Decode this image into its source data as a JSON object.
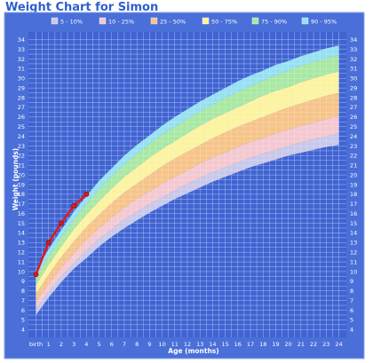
{
  "chart_data": {
    "type": "line",
    "title": "Weight Chart for Simon",
    "xlabel": "Age (months)",
    "ylabel": "Weight (pounds)",
    "x_tick_labels": [
      "birth",
      "1",
      "2",
      "3",
      "4",
      "5",
      "6",
      "7",
      "8",
      "9",
      "10",
      "11",
      "12",
      "13",
      "14",
      "15",
      "16",
      "17",
      "18",
      "19",
      "20",
      "21",
      "22",
      "23",
      "24"
    ],
    "y_ticks": [
      4,
      5,
      6,
      7,
      8,
      9,
      10,
      11,
      12,
      13,
      14,
      15,
      16,
      17,
      18,
      19,
      20,
      21,
      22,
      23,
      24,
      25,
      26,
      27,
      28,
      29,
      30,
      31,
      32,
      33,
      34
    ],
    "xlim": [
      -0.6,
      24.6
    ],
    "ylim": [
      3.2,
      34.8
    ],
    "grid": true,
    "legend_position": "top",
    "percentile_band_months": [
      0,
      1,
      2,
      3,
      4,
      5,
      6,
      7,
      8,
      9,
      10,
      11,
      12,
      13,
      14,
      15,
      16,
      17,
      18,
      19,
      20,
      21,
      22,
      23,
      24
    ],
    "bands": [
      {
        "name": "5 - 10%",
        "color": "#c8c8ea",
        "lower": [
          5.5,
          7.3,
          8.9,
          10.3,
          11.4,
          12.6,
          13.6,
          14.5,
          15.3,
          16.1,
          16.8,
          17.5,
          18.1,
          18.7,
          19.3,
          19.8,
          20.3,
          20.8,
          21.2,
          21.6,
          22.0,
          22.3,
          22.6,
          22.9,
          23.1
        ]
      },
      {
        "name": "10 - 25%",
        "color": "#f4c8d0",
        "lower": [
          6.1,
          7.9,
          9.5,
          10.9,
          12.2,
          13.4,
          14.4,
          15.4,
          16.2,
          17.0,
          17.7,
          18.4,
          19.1,
          19.7,
          20.3,
          20.8,
          21.3,
          21.8,
          22.2,
          22.6,
          23.0,
          23.4,
          23.7,
          24.0,
          24.3
        ]
      },
      {
        "name": "25 - 50%",
        "color": "#f6c48a",
        "lower": [
          6.9,
          8.7,
          10.4,
          11.9,
          13.3,
          14.5,
          15.6,
          16.6,
          17.5,
          18.3,
          19.1,
          19.8,
          20.5,
          21.2,
          21.8,
          22.3,
          22.9,
          23.4,
          23.8,
          24.3,
          24.7,
          25.1,
          25.4,
          25.8,
          26.1
        ]
      },
      {
        "name": "50 - 75%",
        "color": "#fbf3a0",
        "lower": [
          7.7,
          9.7,
          11.5,
          13.1,
          14.6,
          15.9,
          17.1,
          18.2,
          19.1,
          20.0,
          20.9,
          21.7,
          22.4,
          23.1,
          23.8,
          24.4,
          25.0,
          25.5,
          26.0,
          26.5,
          27.0,
          27.4,
          27.8,
          28.2,
          28.5
        ]
      },
      {
        "name": "75 - 90%",
        "color": "#a8e8a4",
        "lower": [
          8.6,
          10.7,
          12.6,
          14.4,
          15.9,
          17.3,
          18.6,
          19.8,
          20.8,
          21.8,
          22.7,
          23.5,
          24.3,
          25.1,
          25.8,
          26.4,
          27.0,
          27.6,
          28.2,
          28.7,
          29.1,
          29.6,
          30.0,
          30.4,
          30.7
        ]
      },
      {
        "name": "90 - 95%",
        "color": "#96e0f2",
        "lower": [
          9.4,
          11.6,
          13.6,
          15.4,
          17.0,
          18.5,
          19.9,
          21.1,
          22.2,
          23.2,
          24.2,
          25.0,
          25.8,
          26.6,
          27.3,
          28.0,
          28.6,
          29.2,
          29.8,
          30.3,
          30.8,
          31.3,
          31.7,
          32.1,
          32.4
        ],
        "upper": [
          10.1,
          12.3,
          14.3,
          16.2,
          17.8,
          19.4,
          20.7,
          22.0,
          23.1,
          24.1,
          25.1,
          26.0,
          26.8,
          27.6,
          28.3,
          29.0,
          29.7,
          30.3,
          30.8,
          31.4,
          31.8,
          32.3,
          32.7,
          33.1,
          33.4
        ]
      }
    ],
    "series": [
      {
        "color": "#e01a1a",
        "x": [
          0,
          1,
          2,
          3,
          4
        ],
        "y": [
          9.7,
          13.0,
          15.0,
          16.8,
          18.0
        ]
      }
    ]
  }
}
